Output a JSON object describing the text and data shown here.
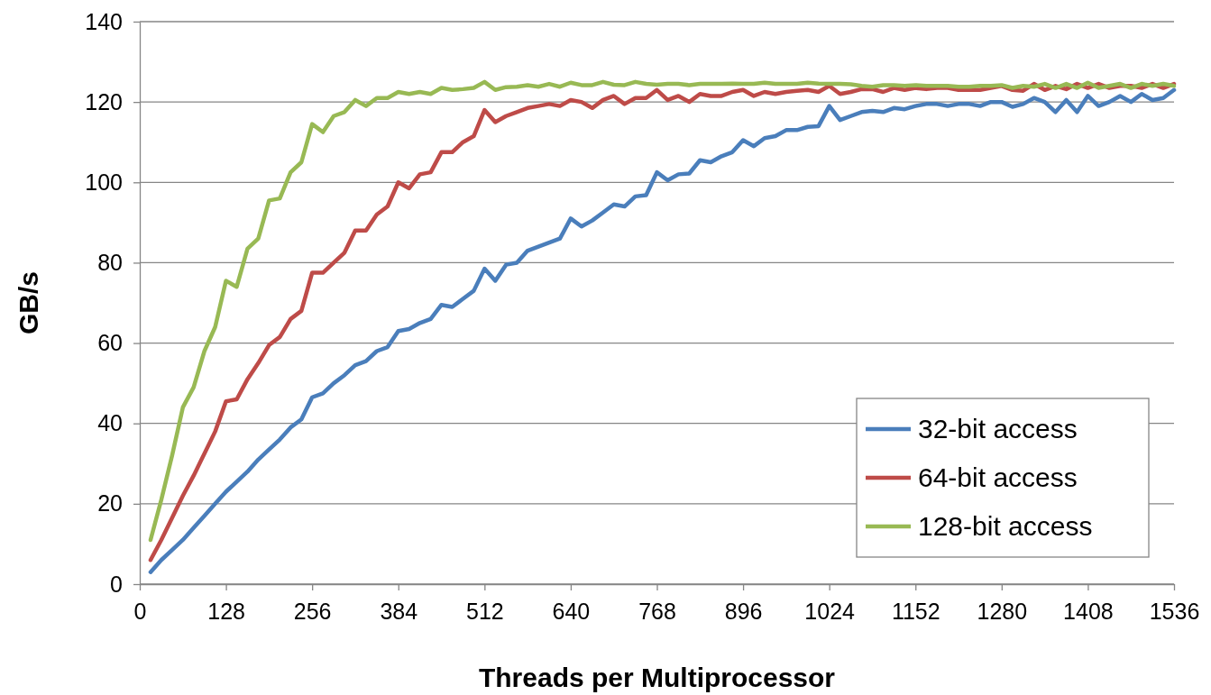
{
  "chart_data": {
    "type": "line",
    "xlabel": "Threads per Multiprocessor",
    "ylabel": "GB/s",
    "x": [
      16,
      32,
      48,
      64,
      80,
      96,
      112,
      128,
      144,
      160,
      176,
      192,
      208,
      224,
      240,
      256,
      272,
      288,
      304,
      320,
      336,
      352,
      368,
      384,
      400,
      416,
      432,
      448,
      464,
      480,
      496,
      512,
      528,
      544,
      560,
      576,
      592,
      608,
      624,
      640,
      656,
      672,
      688,
      704,
      720,
      736,
      752,
      768,
      784,
      800,
      816,
      832,
      848,
      864,
      880,
      896,
      912,
      928,
      944,
      960,
      976,
      992,
      1008,
      1024,
      1040,
      1056,
      1072,
      1088,
      1104,
      1120,
      1136,
      1152,
      1168,
      1184,
      1200,
      1216,
      1232,
      1248,
      1264,
      1280,
      1296,
      1312,
      1328,
      1344,
      1360,
      1376,
      1392,
      1408,
      1424,
      1440,
      1456,
      1472,
      1488,
      1504,
      1520,
      1536
    ],
    "xlim": [
      0,
      1536
    ],
    "xticks": [
      0,
      128,
      256,
      384,
      512,
      640,
      768,
      896,
      1024,
      1152,
      1280,
      1408,
      1536
    ],
    "ylim": [
      0,
      140
    ],
    "yticks": [
      0,
      20,
      40,
      60,
      80,
      100,
      120,
      140
    ],
    "grid": "y",
    "legend": "bottom right",
    "marker": "none",
    "line_style": "solid",
    "series": [
      {
        "name": "32-bit access",
        "color": "#4a7ebb",
        "values": [
          3,
          6,
          8.5,
          11,
          14,
          17,
          20,
          23,
          25.5,
          28,
          31,
          33.5,
          36,
          39,
          41,
          46.5,
          47.5,
          50,
          52,
          54.5,
          55.5,
          58,
          59,
          63,
          63.5,
          65,
          66,
          69.5,
          69,
          71,
          73,
          78.5,
          75.5,
          79.5,
          80,
          83,
          84,
          85,
          86,
          91,
          89,
          90.5,
          92.5,
          94.5,
          94,
          96.5,
          96.8,
          102.5,
          100.5,
          102,
          102.2,
          105.5,
          105,
          106.5,
          107.5,
          110.5,
          109,
          111,
          111.5,
          113,
          113,
          113.8,
          114,
          119,
          115.5,
          116.5,
          117.5,
          117.8,
          117.5,
          118.5,
          118.2,
          119,
          119.5,
          119.5,
          119,
          119.5,
          119.5,
          119,
          120,
          120,
          118.8,
          119.5,
          121,
          120,
          117.5,
          120.5,
          117.5,
          121.5,
          119,
          120,
          121.5,
          120,
          122,
          120.5,
          121,
          123
        ]
      },
      {
        "name": "64-bit access",
        "color": "#be4b48",
        "values": [
          6,
          11,
          16.5,
          22,
          27,
          32.5,
          38,
          45.5,
          46,
          51,
          55,
          59.5,
          61.5,
          66,
          68,
          77.5,
          77.5,
          80,
          82.5,
          88,
          88,
          92,
          94,
          100,
          98.5,
          102,
          102.5,
          107.5,
          107.5,
          110,
          111.5,
          118,
          115,
          116.5,
          117.5,
          118.5,
          119,
          119.5,
          119,
          120.5,
          120,
          118.5,
          120.5,
          121.5,
          119.5,
          121,
          121,
          123,
          120.5,
          121.5,
          120,
          122,
          121.5,
          121.5,
          122.5,
          123,
          121.5,
          122.5,
          122,
          122.5,
          122.8,
          123,
          122.5,
          124,
          122,
          122.5,
          123.2,
          123.2,
          122.5,
          123.5,
          123,
          123.5,
          123.2,
          123.5,
          123.5,
          123,
          123,
          123,
          123.5,
          124,
          123,
          122.8,
          124.5,
          123,
          124,
          123.2,
          124.5,
          123.5,
          124.5,
          123.5,
          124,
          124,
          123.5,
          124.5,
          123.5,
          124.5
        ]
      },
      {
        "name": "128-bit access",
        "color": "#98b954",
        "values": [
          11,
          21,
          32,
          44,
          49,
          58,
          64,
          75.5,
          74,
          83.5,
          86,
          95.5,
          96,
          102.5,
          105,
          114.5,
          112.5,
          116.5,
          117.5,
          120.5,
          119,
          121,
          121,
          122.5,
          122,
          122.5,
          122,
          123.5,
          123,
          123.2,
          123.5,
          125,
          123,
          123.7,
          123.8,
          124.2,
          123.8,
          124.5,
          123.8,
          124.8,
          124.2,
          124.2,
          125,
          124.3,
          124.2,
          125,
          124.5,
          124.3,
          124.5,
          124.5,
          124.2,
          124.5,
          124.5,
          124.5,
          124.6,
          124.5,
          124.5,
          124.8,
          124.5,
          124.5,
          124.5,
          124.8,
          124.6,
          124.5,
          124.5,
          124.4,
          124,
          123.8,
          124.2,
          124.2,
          124,
          124.2,
          124,
          124,
          124,
          123.8,
          123.8,
          124,
          124,
          124.2,
          123.5,
          124,
          123.8,
          124.5,
          123.5,
          124.5,
          123.5,
          124.8,
          123.5,
          124,
          124.5,
          123.5,
          124.5,
          124,
          124.5,
          124
        ]
      }
    ]
  }
}
